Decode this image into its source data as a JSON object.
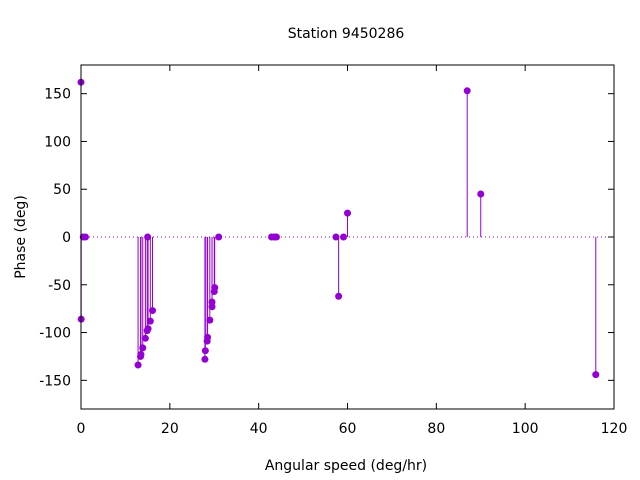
{
  "chart_data": {
    "type": "scatter",
    "title": "Station 9450286",
    "xlabel": "Angular speed (deg/hr)",
    "ylabel": "Phase (deg)",
    "xlim": [
      0,
      120
    ],
    "ylim": [
      -180,
      180
    ],
    "xticks": [
      0,
      20,
      40,
      60,
      80,
      100,
      120
    ],
    "yticks": [
      -150,
      -100,
      -50,
      0,
      50,
      100,
      150
    ],
    "grid": false,
    "legend": "none",
    "zero_line": true,
    "style": "impulses-with-points",
    "series": [
      {
        "color": "#9400d3",
        "points": [
          {
            "x": 0.0,
            "y": 162
          },
          {
            "x": 0.04,
            "y": -86
          },
          {
            "x": 0.5,
            "y": 0
          },
          {
            "x": 1.0,
            "y": 0
          },
          {
            "x": 12.85,
            "y": -134
          },
          {
            "x": 13.4,
            "y": -125
          },
          {
            "x": 13.5,
            "y": -123
          },
          {
            "x": 13.9,
            "y": -116
          },
          {
            "x": 14.5,
            "y": -106
          },
          {
            "x": 14.9,
            "y": -98
          },
          {
            "x": 15.0,
            "y": 0
          },
          {
            "x": 15.1,
            "y": -96
          },
          {
            "x": 15.6,
            "y": -88
          },
          {
            "x": 16.1,
            "y": -77
          },
          {
            "x": 27.9,
            "y": -128
          },
          {
            "x": 28.0,
            "y": -119
          },
          {
            "x": 28.4,
            "y": -109
          },
          {
            "x": 28.5,
            "y": -105
          },
          {
            "x": 29.0,
            "y": -87
          },
          {
            "x": 29.5,
            "y": -73
          },
          {
            "x": 29.5,
            "y": -68
          },
          {
            "x": 30.0,
            "y": -57
          },
          {
            "x": 30.1,
            "y": -53
          },
          {
            "x": 31.0,
            "y": 0
          },
          {
            "x": 42.9,
            "y": 0
          },
          {
            "x": 43.5,
            "y": 0
          },
          {
            "x": 44.0,
            "y": 0
          },
          {
            "x": 57.4,
            "y": 0
          },
          {
            "x": 58.0,
            "y": -62
          },
          {
            "x": 59.1,
            "y": 0
          },
          {
            "x": 60.0,
            "y": 25
          },
          {
            "x": 86.95,
            "y": 153
          },
          {
            "x": 90.0,
            "y": 45
          },
          {
            "x": 115.9,
            "y": -144
          }
        ]
      }
    ]
  }
}
